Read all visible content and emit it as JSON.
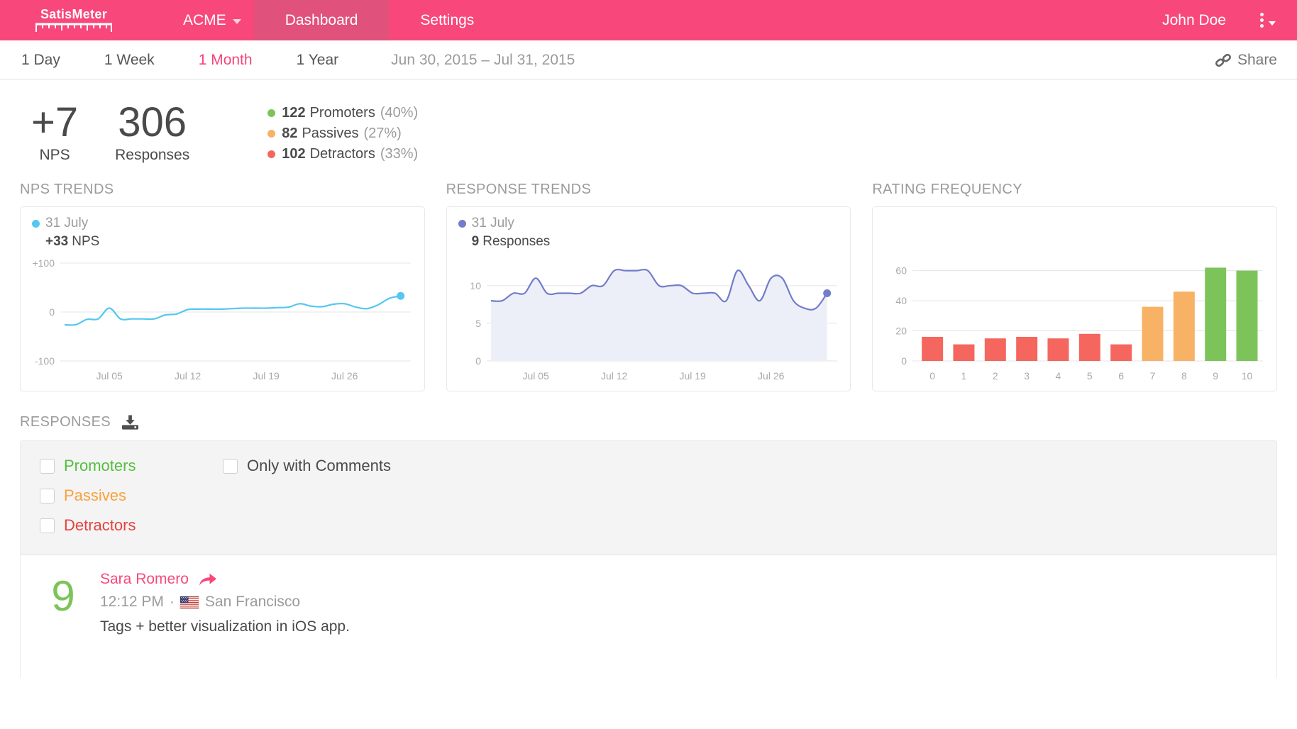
{
  "header": {
    "logo": {
      "part1": "Satis",
      "part2": "Meter"
    },
    "workspace": "ACME",
    "tabs": [
      {
        "label": "Dashboard",
        "active": true
      },
      {
        "label": "Settings",
        "active": false
      }
    ],
    "user": "John Doe"
  },
  "rangebar": {
    "ranges": [
      {
        "label": "1 Day",
        "active": false
      },
      {
        "label": "1 Week",
        "active": false
      },
      {
        "label": "1 Month",
        "active": true
      },
      {
        "label": "1 Year",
        "active": false
      }
    ],
    "date_range": "Jun 30, 2015 – Jul 31, 2015",
    "share_label": "Share"
  },
  "summary": {
    "nps": {
      "value": "+7",
      "label": "NPS"
    },
    "responses": {
      "value": "306",
      "label": "Responses"
    },
    "breakdown": [
      {
        "count": "122",
        "label": "Promoters",
        "pct": "(40%)",
        "color": "#7cc45a"
      },
      {
        "count": "82",
        "label": "Passives",
        "pct": "(27%)",
        "color": "#f8b266"
      },
      {
        "count": "102",
        "label": "Detractors",
        "pct": "(33%)",
        "color": "#f4665e"
      }
    ]
  },
  "chart_data": [
    {
      "type": "line",
      "title": "NPS TRENDS",
      "legend": {
        "dot_color": "#55c7f0",
        "date": "31 July",
        "value": "+33",
        "unit": "NPS"
      },
      "color": "#55c7f0",
      "x_unit": "day of July 2015",
      "values": [
        -26,
        -26,
        -15,
        -14,
        8,
        -14,
        -14,
        -14,
        -14,
        -6,
        -4,
        5,
        6,
        6,
        6,
        7,
        8,
        8,
        8,
        9,
        10,
        17,
        12,
        11,
        16,
        17,
        10,
        7,
        15,
        28,
        33
      ],
      "ylim": [
        -100,
        100
      ],
      "yticks": [
        {
          "v": 100,
          "label": "+100"
        },
        {
          "v": 0,
          "label": "0"
        },
        {
          "v": -100,
          "label": "-100"
        }
      ],
      "xticks": [
        {
          "i": 4,
          "label": "Jul 05"
        },
        {
          "i": 11,
          "label": "Jul 12"
        },
        {
          "i": 18,
          "label": "Jul 19"
        },
        {
          "i": 25,
          "label": "Jul 26"
        }
      ],
      "end_dot": true,
      "grid": true
    },
    {
      "type": "area",
      "title": "RESPONSE TRENDS",
      "legend": {
        "dot_color": "#727cc9",
        "date": "31 July",
        "value": "9",
        "unit": "Responses"
      },
      "color": "#727cc9",
      "fill": "#edeff8",
      "x_unit": "day of July 2015",
      "values": [
        8,
        8,
        9,
        9,
        11,
        9,
        9,
        9,
        9,
        10,
        10,
        12,
        12,
        12,
        12,
        10,
        10,
        10,
        9,
        9,
        9,
        8,
        12,
        10,
        8,
        11,
        11,
        8,
        7,
        7,
        9
      ],
      "ylim": [
        0,
        13
      ],
      "yticks": [
        {
          "v": 10,
          "label": "10"
        },
        {
          "v": 5,
          "label": "5"
        },
        {
          "v": 0,
          "label": "0"
        }
      ],
      "xticks": [
        {
          "i": 4,
          "label": "Jul 05"
        },
        {
          "i": 11,
          "label": "Jul 12"
        },
        {
          "i": 18,
          "label": "Jul 19"
        },
        {
          "i": 25,
          "label": "Jul 26"
        }
      ],
      "end_dot": true,
      "grid": true
    },
    {
      "type": "bar",
      "title": "RATING FREQUENCY",
      "categories": [
        "0",
        "1",
        "2",
        "3",
        "4",
        "5",
        "6",
        "7",
        "8",
        "9",
        "10"
      ],
      "values": [
        16,
        11,
        15,
        16,
        15,
        18,
        11,
        36,
        46,
        62,
        60
      ],
      "bar_colors": [
        "#f4665e",
        "#f4665e",
        "#f4665e",
        "#f4665e",
        "#f4665e",
        "#f4665e",
        "#f4665e",
        "#f8b266",
        "#f8b266",
        "#7cc45a",
        "#7cc45a"
      ],
      "ylim": [
        0,
        65
      ],
      "yticks": [
        {
          "v": 0,
          "label": "0"
        },
        {
          "v": 20,
          "label": "20"
        },
        {
          "v": 40,
          "label": "40"
        },
        {
          "v": 60,
          "label": "60"
        }
      ],
      "grid": true
    }
  ],
  "responses_section": {
    "title": "RESPONSES",
    "filters": [
      {
        "label": "Promoters",
        "color": "#54be3e"
      },
      {
        "label": "Passives",
        "color": "#f9a139"
      },
      {
        "label": "Detractors",
        "color": "#e93f3b"
      },
      {
        "label": "Only with Comments",
        "color": "#4a4a4a"
      }
    ],
    "entries": [
      {
        "score": "9",
        "score_color": "#7cc45a",
        "name": "Sara Romero",
        "time": "12:12 PM",
        "separator": "·",
        "location": "San Francisco",
        "comment": "Tags + better visualization in iOS app."
      }
    ]
  }
}
